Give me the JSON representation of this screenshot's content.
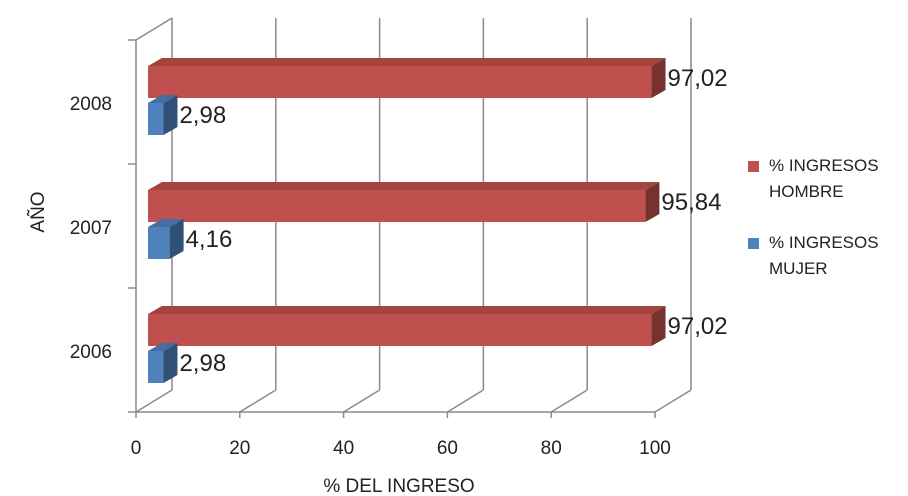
{
  "chart_data": {
    "type": "bar",
    "orientation": "horizontal",
    "three_d": true,
    "categories": [
      "2006",
      "2007",
      "2008"
    ],
    "series": [
      {
        "name": "% INGRESOS HOMBRE",
        "values": [
          97.02,
          95.84,
          97.02
        ],
        "labels": [
          "97,02",
          "95,84",
          "97,02"
        ],
        "color": "#C0504D"
      },
      {
        "name": "% INGRESOS MUJER",
        "values": [
          2.98,
          4.16,
          2.98
        ],
        "labels": [
          "2,98",
          "4,16",
          "2,98"
        ],
        "color": "#4F81BD"
      }
    ],
    "legend": {
      "placement": "right",
      "entries": [
        {
          "lines": [
            "% INGRESOS",
            "HOMBRE"
          ],
          "color": "#C0504D"
        },
        {
          "lines": [
            "% INGRESOS",
            "MUJER"
          ],
          "color": "#4F81BD"
        }
      ]
    },
    "xlabel": "% DEL INGRESO",
    "ylabel": "AÑO",
    "xlim": [
      0,
      100
    ],
    "xticks": [
      0,
      20,
      40,
      60,
      80,
      100
    ],
    "grid": true
  }
}
